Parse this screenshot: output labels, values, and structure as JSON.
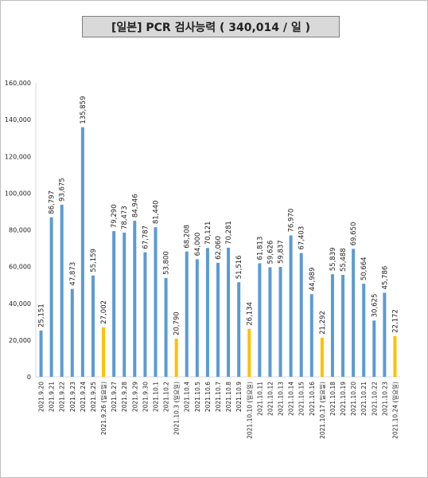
{
  "chart_data": {
    "type": "bar",
    "title": "[일본] PCR 검사능력 ( 340,014 / 일 )",
    "xlabel": "",
    "ylabel": "",
    "ylim": [
      0,
      160000
    ],
    "yticks": [
      "0",
      "20,000",
      "40,000",
      "60,000",
      "80,000",
      "100,000",
      "120,000",
      "140,000",
      "160,000"
    ],
    "ytick_values": [
      0,
      20000,
      40000,
      60000,
      80000,
      100000,
      120000,
      140000,
      160000
    ],
    "grid": false,
    "colors": {
      "weekday": "#5b9bd5",
      "sunday": "#ffc000",
      "axis": "#d9d9d9",
      "text": "#222222"
    },
    "categories": [
      "2021.9.20",
      "2021.9.21",
      "2021.9.22",
      "2021.9.23",
      "2021.9.24",
      "2021.9.25",
      "2021.9.26 (일요일)",
      "2021.9.27",
      "2021.9.28",
      "2021.9.29",
      "2021.9.30",
      "2021.10.1",
      "2021.10.2",
      "2021.10.3 (일요일)",
      "2021.10.4",
      "2021.10.5",
      "2021.10.6",
      "2021.10.7",
      "2021.10.8",
      "2021.10.9",
      "2021.10.10 (일요일)",
      "2021.10.11",
      "2021.10.12",
      "2021.10.13",
      "2021.10.14",
      "2021.10.15",
      "2021.10.16",
      "2021.10.17 (일요일)",
      "2021.10.18",
      "2021.10.19",
      "2021.10.20",
      "2021.10.21",
      "2021.10.22",
      "2021.10.23",
      "2021.10.24 (일요일)"
    ],
    "values": [
      25151,
      86797,
      93675,
      47873,
      135859,
      55159,
      27002,
      79290,
      78473,
      84946,
      67787,
      81440,
      53800,
      20790,
      68208,
      64000,
      70121,
      62060,
      70281,
      51516,
      26134,
      61813,
      59626,
      59837,
      76970,
      67403,
      44989,
      21292,
      55839,
      55488,
      69650,
      50664,
      30625,
      45786,
      22172
    ],
    "labels": [
      "25,151",
      "86,797",
      "93,675",
      "47,873",
      "135,859",
      "55,159",
      "27,002",
      "79,290",
      "78,473",
      "84,946",
      "67,787",
      "81,440",
      "53,800",
      "20,790",
      "68,208",
      "64,000",
      "70,121",
      "62,060",
      "70,281",
      "51,516",
      "26,134",
      "61,813",
      "59,626",
      "59,837",
      "76,970",
      "67,403",
      "44,989",
      "21,292",
      "55,839",
      "55,488",
      "69,650",
      "50,664",
      "30,625",
      "45,786",
      "22,172"
    ],
    "highlight": [
      false,
      false,
      false,
      false,
      false,
      false,
      true,
      false,
      false,
      false,
      false,
      false,
      false,
      true,
      false,
      false,
      false,
      false,
      false,
      false,
      true,
      false,
      false,
      false,
      false,
      false,
      false,
      true,
      false,
      false,
      false,
      false,
      false,
      false,
      true
    ]
  }
}
